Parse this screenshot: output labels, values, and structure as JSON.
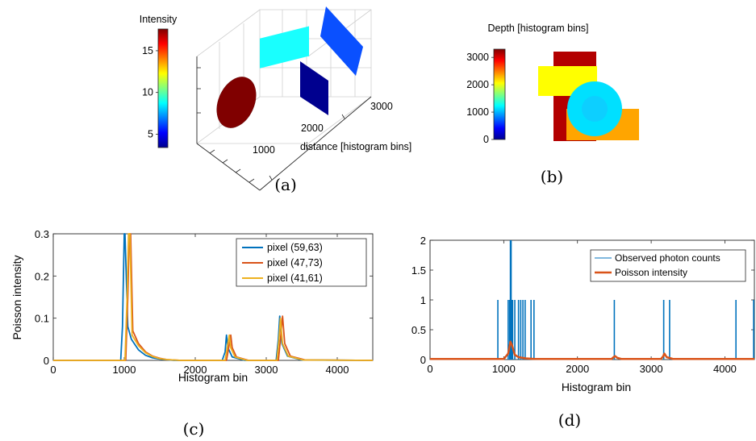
{
  "panels": {
    "a": {
      "caption": "(a)"
    },
    "b": {
      "caption": "(b)"
    },
    "c": {
      "caption": "(c)"
    },
    "d": {
      "caption": "(d)"
    }
  },
  "chart_data": [
    {
      "id": "a",
      "type": "scatter3d",
      "colorbar": {
        "title": "Intensity",
        "ticks": [
          5,
          10,
          15
        ],
        "range": [
          3.4,
          17.6
        ],
        "colormap": "jet"
      },
      "xlabel": "distance [histogram bins]",
      "xticks": [
        1000,
        2000,
        3000
      ],
      "objects": [
        {
          "shape": "ellipse",
          "distance": 1000,
          "intensity": 17.3,
          "color": "#800000"
        },
        {
          "shape": "square",
          "distance": 1700,
          "intensity": 9.2,
          "color": "#19fffe"
        },
        {
          "shape": "parallelogram",
          "distance": 2400,
          "intensity": 3.6,
          "color": "#00008f"
        },
        {
          "shape": "parallelogram",
          "distance": 3200,
          "intensity": 5.8,
          "color": "#0a50ff"
        }
      ]
    },
    {
      "id": "b",
      "type": "heatmap",
      "title": "Depth [histogram bins]",
      "colorbar": {
        "ticks": [
          0,
          1000,
          2000,
          3000
        ],
        "range": [
          0,
          3300
        ],
        "colormap": "jet"
      },
      "regions": [
        {
          "shape": "rect",
          "depth": 3200,
          "color": "#b30000"
        },
        {
          "shape": "rect",
          "depth": 2500,
          "color": "#ffff00"
        },
        {
          "shape": "rect",
          "depth": 2450,
          "color": "#ffa500"
        },
        {
          "shape": "circle",
          "depth": 1050,
          "color": "#00e0ff"
        }
      ]
    },
    {
      "id": "c",
      "type": "line",
      "xlabel": "Histogram bin",
      "ylabel": "Poisson intensity",
      "xlim": [
        0,
        4500
      ],
      "ylim": [
        0,
        0.3
      ],
      "xticks": [
        0,
        1000,
        2000,
        3000,
        4000
      ],
      "yticks": [
        0,
        0.1,
        0.2,
        0.3
      ],
      "legend": "top-right",
      "series": [
        {
          "name": "pixel (59,63)",
          "color": "#0072bd",
          "x": [
            0,
            950,
            975,
            1000,
            1010,
            1050,
            1100,
            1200,
            1300,
            1400,
            1500,
            1700,
            2380,
            2420,
            2440,
            2460,
            2520,
            2700,
            3140,
            3170,
            3190,
            3220,
            3300,
            3500,
            4500
          ],
          "y": [
            0,
            0,
            0.08,
            0.3,
            0.3,
            0.08,
            0.05,
            0.025,
            0.012,
            0.006,
            0.003,
            0,
            0,
            0.02,
            0.06,
            0.03,
            0.008,
            0,
            0,
            0.05,
            0.105,
            0.04,
            0.01,
            0.001,
            0
          ]
        },
        {
          "name": "pixel (47,73)",
          "color": "#d95319",
          "x": [
            0,
            1020,
            1050,
            1070,
            1090,
            1120,
            1200,
            1300,
            1400,
            1500,
            1600,
            1800,
            2440,
            2470,
            2500,
            2520,
            2580,
            2750,
            3170,
            3200,
            3230,
            3260,
            3340,
            3550,
            4500
          ],
          "y": [
            0,
            0,
            0.15,
            0.3,
            0.3,
            0.07,
            0.04,
            0.02,
            0.01,
            0.005,
            0.002,
            0,
            0,
            0.03,
            0.06,
            0.03,
            0.008,
            0,
            0,
            0.05,
            0.105,
            0.04,
            0.01,
            0.001,
            0
          ]
        },
        {
          "name": "pixel (41,61)",
          "color": "#edb120",
          "x": [
            0,
            1010,
            1040,
            1060,
            1080,
            1110,
            1200,
            1300,
            1400,
            1500,
            1600,
            1800,
            2420,
            2450,
            2480,
            2500,
            2560,
            2730,
            3150,
            3180,
            3200,
            3230,
            3310,
            3520,
            4500
          ],
          "y": [
            0,
            0,
            0.15,
            0.3,
            0.3,
            0.06,
            0.035,
            0.018,
            0.009,
            0.004,
            0.002,
            0,
            0,
            0.03,
            0.06,
            0.03,
            0.008,
            0,
            0,
            0.05,
            0.1,
            0.04,
            0.01,
            0.001,
            0
          ]
        }
      ]
    },
    {
      "id": "d",
      "type": "line",
      "xlabel": "Histogram bin",
      "xlim": [
        0,
        4400
      ],
      "ylim": [
        0,
        2
      ],
      "xticks": [
        0,
        1000,
        2000,
        3000,
        4000
      ],
      "yticks": [
        0,
        0.5,
        1,
        1.5,
        2
      ],
      "legend": "top-right",
      "series": [
        {
          "name": "Observed photon counts",
          "color": "#0072bd",
          "style": "stem",
          "x": [
            920,
            1060,
            1080,
            1090,
            1100,
            1110,
            1120,
            1150,
            1200,
            1230,
            1260,
            1290,
            1370,
            1410,
            2500,
            3170,
            3250,
            4150,
            4390
          ],
          "y": [
            1,
            1,
            1,
            2,
            2,
            1,
            1,
            1,
            1,
            1,
            1,
            1,
            1,
            1,
            1,
            1,
            1,
            1,
            1
          ]
        },
        {
          "name": "Poisson intensity",
          "color": "#d95319",
          "style": "line",
          "x": [
            0,
            1000,
            1060,
            1090,
            1110,
            1150,
            1200,
            1300,
            1400,
            1500,
            2460,
            2490,
            2510,
            2540,
            2600,
            3130,
            3160,
            3180,
            3210,
            3300,
            4400
          ],
          "y": [
            0.01,
            0.01,
            0.1,
            0.3,
            0.25,
            0.08,
            0.04,
            0.02,
            0.012,
            0.01,
            0.01,
            0.04,
            0.06,
            0.03,
            0.01,
            0.01,
            0.05,
            0.1,
            0.04,
            0.01,
            0.01
          ]
        }
      ]
    }
  ]
}
